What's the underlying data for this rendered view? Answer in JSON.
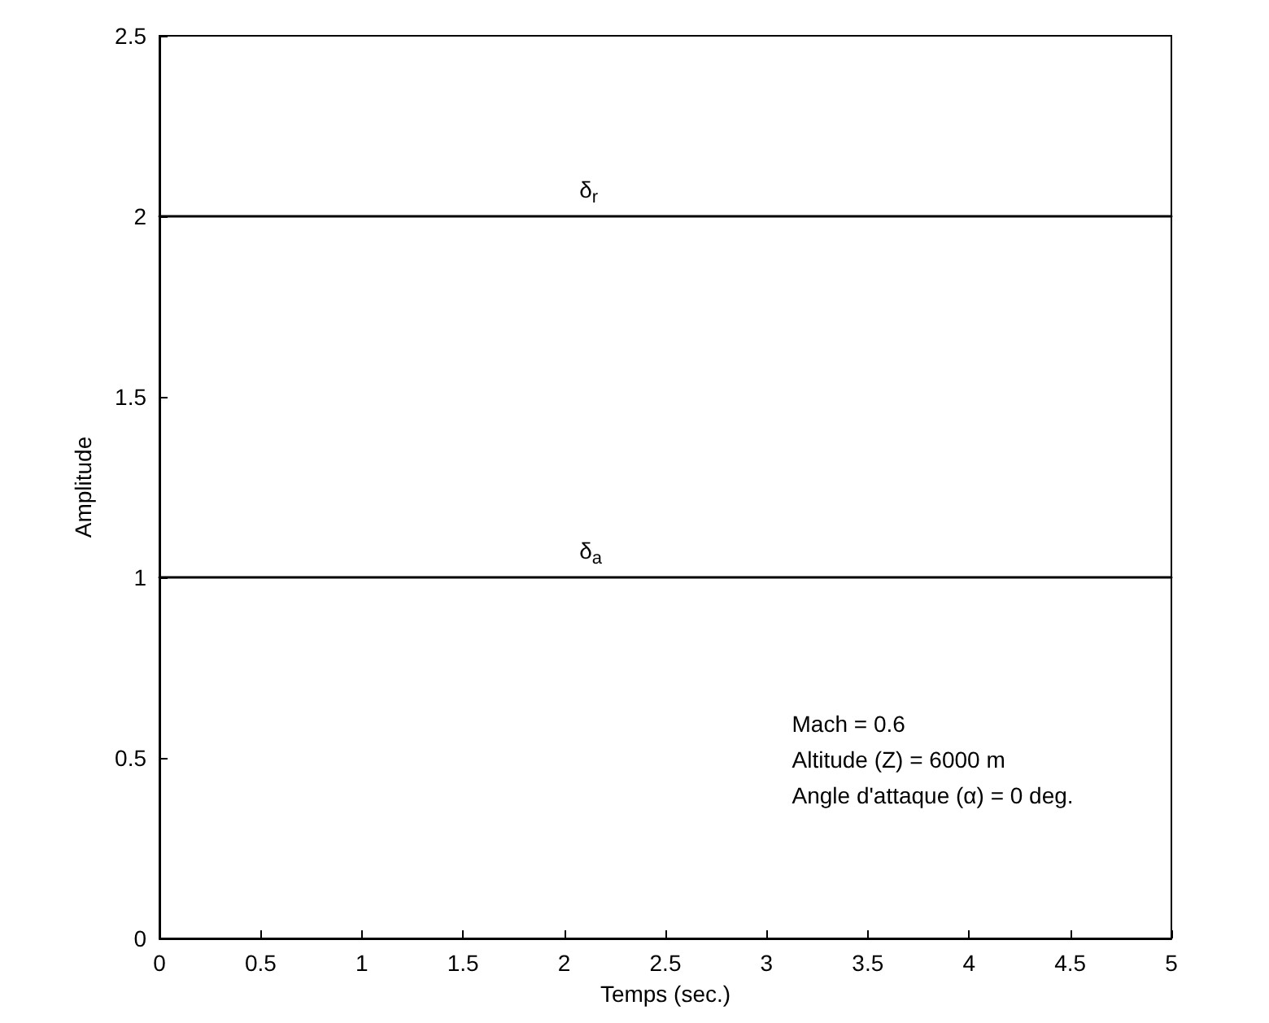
{
  "chart_data": {
    "type": "line",
    "xlabel": "Temps (sec.)",
    "ylabel": "Amplitude",
    "x": [
      0,
      5
    ],
    "series": [
      {
        "name": "δ$_{r}$",
        "color": "#000000",
        "values": [
          2,
          2
        ]
      },
      {
        "name": "δ$_{a}$",
        "color": "#000000",
        "values": [
          1,
          1
        ]
      }
    ],
    "annotations": [
      "Mach = 0.6",
      "Altitude (Z) = 6000 m",
      "Angle d'attaque (α) = 0 deg."
    ],
    "xlim": [
      0,
      5
    ],
    "xticks": [
      0,
      0.5,
      1,
      1.5,
      2,
      2.5,
      3,
      3.5,
      4,
      4.5,
      5
    ],
    "ylim": [
      0,
      2.5
    ],
    "yticks": [
      0,
      0.5,
      1,
      1.5,
      2,
      2.5
    ],
    "grid": false,
    "legend": false,
    "marker": "none",
    "line_style": "solid"
  }
}
